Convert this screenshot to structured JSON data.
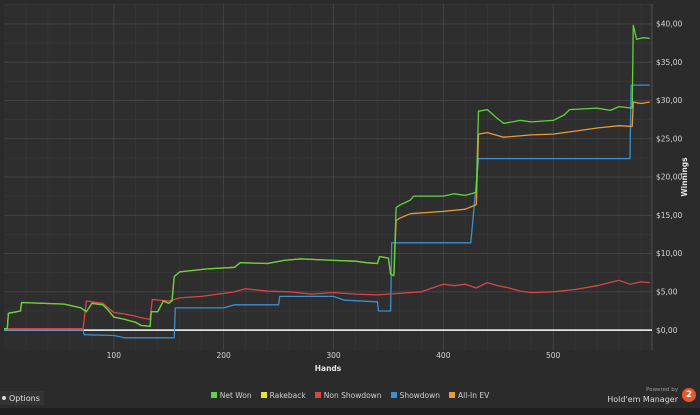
{
  "options": {
    "label": "Options"
  },
  "brand": {
    "powered_by": "Powered by",
    "name": "Hold'em Manager",
    "logo": "2"
  },
  "chart_data": {
    "type": "line",
    "xlabel": "Hands",
    "ylabel": "Winnings",
    "xlim": [
      0,
      590
    ],
    "ylim": [
      -2.6,
      42.6
    ],
    "x_ticks": [
      100,
      200,
      300,
      400,
      500
    ],
    "y_ticks": [
      {
        "value": 0,
        "label": "$0,00"
      },
      {
        "value": 5,
        "label": "$5,00"
      },
      {
        "value": 10,
        "label": "$10,00"
      },
      {
        "value": 15,
        "label": "$15,00"
      },
      {
        "value": 20,
        "label": "$20,00"
      },
      {
        "value": 25,
        "label": "$25,00"
      },
      {
        "value": 30,
        "label": "$30,00"
      },
      {
        "value": 35,
        "label": "$35,00"
      },
      {
        "value": 40,
        "label": "$40,00"
      }
    ],
    "grid": true,
    "legend_position": "bottom",
    "series": [
      {
        "name": "Net Won",
        "color": "#5ed63a",
        "points": [
          [
            0,
            0.2
          ],
          [
            3,
            0.2
          ],
          [
            4,
            2.2
          ],
          [
            15,
            2.5
          ],
          [
            16,
            3.6
          ],
          [
            55,
            3.4
          ],
          [
            70,
            2.9
          ],
          [
            75,
            2.4
          ],
          [
            80,
            3.5
          ],
          [
            90,
            3.3
          ],
          [
            95,
            2.6
          ],
          [
            100,
            1.7
          ],
          [
            110,
            1.4
          ],
          [
            120,
            1.0
          ],
          [
            125,
            0.6
          ],
          [
            133,
            0.5
          ],
          [
            134,
            2.4
          ],
          [
            140,
            2.4
          ],
          [
            145,
            3.8
          ],
          [
            150,
            3.5
          ],
          [
            153,
            3.8
          ],
          [
            155,
            7.0
          ],
          [
            160,
            7.6
          ],
          [
            185,
            8.0
          ],
          [
            210,
            8.2
          ],
          [
            215,
            8.8
          ],
          [
            240,
            8.7
          ],
          [
            255,
            9.1
          ],
          [
            270,
            9.3
          ],
          [
            300,
            9.1
          ],
          [
            320,
            9.0
          ],
          [
            330,
            8.8
          ],
          [
            340,
            8.7
          ],
          [
            342,
            9.6
          ],
          [
            350,
            9.4
          ],
          [
            352,
            7.3
          ],
          [
            355,
            7.1
          ],
          [
            357,
            16.0
          ],
          [
            360,
            16.3
          ],
          [
            370,
            17.0
          ],
          [
            373,
            17.5
          ],
          [
            400,
            17.5
          ],
          [
            410,
            17.8
          ],
          [
            420,
            17.6
          ],
          [
            430,
            18.0
          ],
          [
            432,
            28.6
          ],
          [
            440,
            28.8
          ],
          [
            448,
            27.8
          ],
          [
            455,
            27.0
          ],
          [
            470,
            27.4
          ],
          [
            480,
            27.2
          ],
          [
            500,
            27.4
          ],
          [
            510,
            28.1
          ],
          [
            515,
            28.8
          ],
          [
            540,
            29.0
          ],
          [
            552,
            28.7
          ],
          [
            560,
            29.2
          ],
          [
            572,
            29.0
          ],
          [
            573,
            39.8
          ],
          [
            576,
            38.0
          ],
          [
            582,
            38.2
          ],
          [
            588,
            38.1
          ]
        ]
      },
      {
        "name": "Rakeback",
        "color": "#e6e62e",
        "points": []
      },
      {
        "name": "Non Showdown",
        "color": "#d84545",
        "points": [
          [
            0,
            0.2
          ],
          [
            72,
            0.2
          ],
          [
            75,
            3.8
          ],
          [
            90,
            3.5
          ],
          [
            100,
            2.3
          ],
          [
            110,
            2.1
          ],
          [
            120,
            1.8
          ],
          [
            125,
            1.6
          ],
          [
            133,
            1.4
          ],
          [
            135,
            4.0
          ],
          [
            150,
            3.8
          ],
          [
            160,
            4.2
          ],
          [
            180,
            4.4
          ],
          [
            200,
            4.8
          ],
          [
            210,
            5.0
          ],
          [
            220,
            5.4
          ],
          [
            240,
            5.1
          ],
          [
            260,
            5.0
          ],
          [
            280,
            4.7
          ],
          [
            300,
            4.9
          ],
          [
            320,
            4.7
          ],
          [
            340,
            4.6
          ],
          [
            360,
            4.8
          ],
          [
            380,
            5.0
          ],
          [
            390,
            5.5
          ],
          [
            400,
            6.0
          ],
          [
            410,
            5.8
          ],
          [
            420,
            6.0
          ],
          [
            430,
            5.5
          ],
          [
            440,
            6.2
          ],
          [
            450,
            5.8
          ],
          [
            460,
            5.5
          ],
          [
            470,
            5.1
          ],
          [
            480,
            4.9
          ],
          [
            500,
            5.0
          ],
          [
            520,
            5.3
          ],
          [
            540,
            5.8
          ],
          [
            560,
            6.5
          ],
          [
            570,
            6.0
          ],
          [
            580,
            6.3
          ],
          [
            588,
            6.2
          ]
        ]
      },
      {
        "name": "Showdown",
        "color": "#3a90d0",
        "points": [
          [
            0,
            0.0
          ],
          [
            72,
            0.0
          ],
          [
            73,
            -0.6
          ],
          [
            100,
            -0.7
          ],
          [
            110,
            -1.0
          ],
          [
            155,
            -1.0
          ],
          [
            156,
            2.9
          ],
          [
            200,
            2.9
          ],
          [
            210,
            3.3
          ],
          [
            250,
            3.3
          ],
          [
            251,
            4.4
          ],
          [
            300,
            4.4
          ],
          [
            310,
            3.9
          ],
          [
            340,
            3.7
          ],
          [
            341,
            2.5
          ],
          [
            352,
            2.5
          ],
          [
            353,
            11.4
          ],
          [
            425,
            11.4
          ],
          [
            432,
            22.4
          ],
          [
            570,
            22.4
          ],
          [
            571,
            32.0
          ],
          [
            588,
            32.0
          ]
        ]
      },
      {
        "name": "All-In EV",
        "color": "#e89a3a",
        "points": [
          [
            0,
            0.2
          ],
          [
            3,
            0.2
          ],
          [
            4,
            2.2
          ],
          [
            15,
            2.5
          ],
          [
            16,
            3.6
          ],
          [
            55,
            3.4
          ],
          [
            70,
            2.9
          ],
          [
            75,
            2.4
          ],
          [
            80,
            3.5
          ],
          [
            90,
            3.3
          ],
          [
            95,
            2.6
          ],
          [
            100,
            1.7
          ],
          [
            110,
            1.4
          ],
          [
            120,
            1.0
          ],
          [
            125,
            0.6
          ],
          [
            133,
            0.5
          ],
          [
            134,
            2.4
          ],
          [
            140,
            2.4
          ],
          [
            145,
            3.8
          ],
          [
            150,
            3.5
          ],
          [
            153,
            3.8
          ],
          [
            155,
            7.0
          ],
          [
            160,
            7.6
          ],
          [
            185,
            8.0
          ],
          [
            210,
            8.2
          ],
          [
            215,
            8.8
          ],
          [
            240,
            8.7
          ],
          [
            255,
            9.1
          ],
          [
            270,
            9.3
          ],
          [
            300,
            9.1
          ],
          [
            320,
            9.0
          ],
          [
            330,
            8.8
          ],
          [
            340,
            8.7
          ],
          [
            342,
            9.6
          ],
          [
            350,
            9.4
          ],
          [
            352,
            7.3
          ],
          [
            355,
            7.1
          ],
          [
            357,
            14.3
          ],
          [
            360,
            14.6
          ],
          [
            370,
            15.2
          ],
          [
            400,
            15.5
          ],
          [
            420,
            15.8
          ],
          [
            430,
            16.4
          ],
          [
            432,
            25.6
          ],
          [
            440,
            25.8
          ],
          [
            455,
            25.2
          ],
          [
            480,
            25.5
          ],
          [
            500,
            25.6
          ],
          [
            520,
            26.0
          ],
          [
            540,
            26.4
          ],
          [
            560,
            26.7
          ],
          [
            572,
            26.6
          ],
          [
            573,
            29.8
          ],
          [
            580,
            29.6
          ],
          [
            588,
            29.8
          ]
        ]
      }
    ]
  }
}
